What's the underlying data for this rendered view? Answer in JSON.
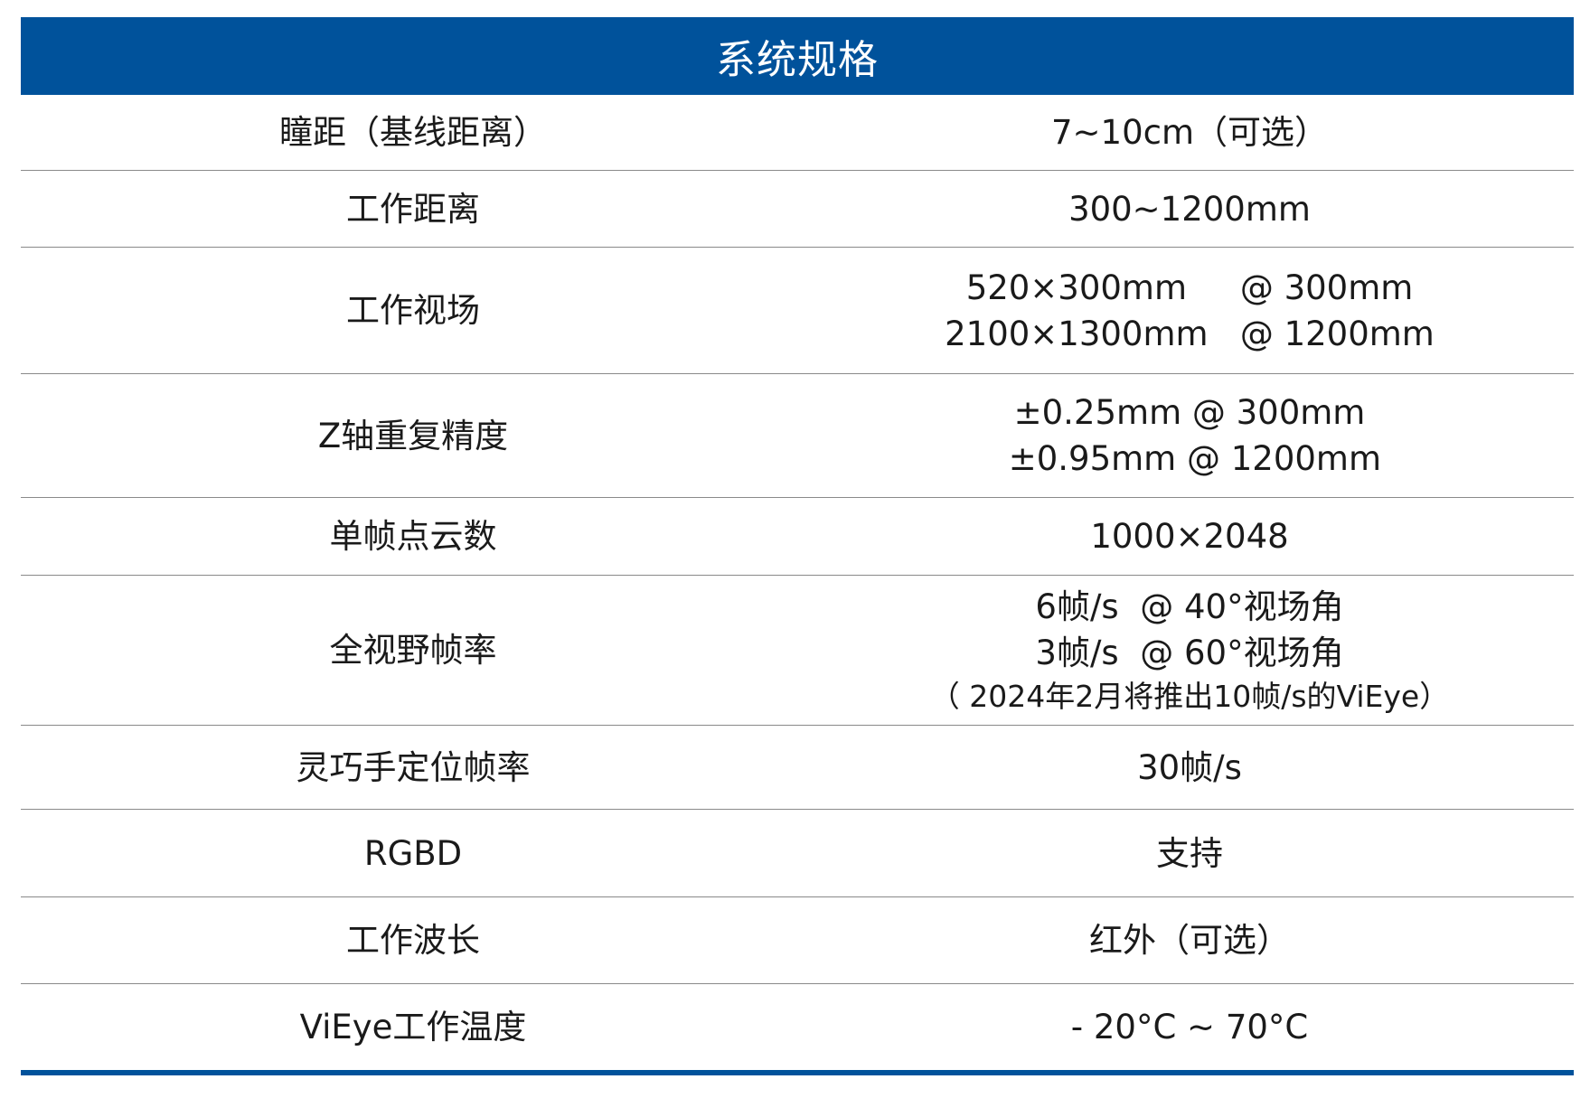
{
  "title": "系统规格",
  "accent_color": "#00529b",
  "rows": [
    {
      "label": "瞳距（基线距离）",
      "values": [
        "7~10cm（可选）"
      ]
    },
    {
      "label": "工作距离",
      "values": [
        "300~1200mm"
      ]
    },
    {
      "label": "工作视场",
      "values": [
        "520×300mm     @ 300mm",
        "2100×1300mm   @ 1200mm"
      ]
    },
    {
      "label": "Z轴重复精度",
      "values": [
        "±0.25mm @ 300mm",
        " ±0.95mm @ 1200mm"
      ]
    },
    {
      "label": "单帧点云数",
      "values": [
        "1000×2048"
      ]
    },
    {
      "label": "全视野帧率",
      "values": [
        "6帧/s  @ 40°视场角",
        "3帧/s  @ 60°视场角"
      ],
      "note": "（ 2024年2月将推出10帧/s的ViEye）"
    },
    {
      "label": "灵巧手定位帧率",
      "values": [
        "30帧/s"
      ]
    },
    {
      "label": "RGBD",
      "values": [
        "支持"
      ]
    },
    {
      "label": "工作波长",
      "values": [
        "红外（可选）"
      ]
    },
    {
      "label": "ViEye工作温度",
      "values": [
        "- 20°C ~ 70°C"
      ]
    }
  ]
}
